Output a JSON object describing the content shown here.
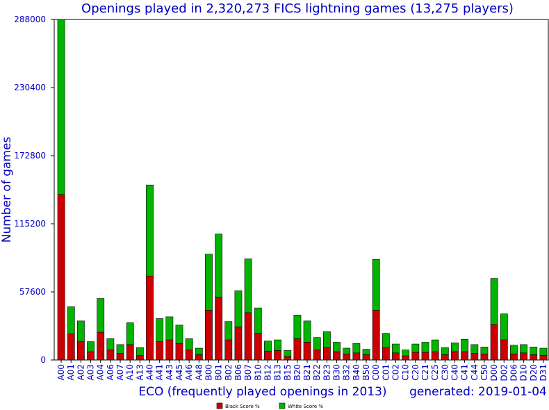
{
  "chart_data": {
    "type": "bar",
    "stacked": true,
    "title": "Openings played in 2,320,273 FICS lightning games (13,275 players)",
    "xlabel": "ECO (frequently played openings in 2013)",
    "ylabel": "Number of games",
    "footer": "generated: 2019-01-04",
    "ylim": [
      0,
      288000
    ],
    "yticks": [
      "0",
      "57600",
      "115200",
      "172800",
      "230400",
      "288000"
    ],
    "grid": false,
    "legend_position": "bottom-center",
    "categories": [
      "A00",
      "A01",
      "A02",
      "A03",
      "A04",
      "A06",
      "A07",
      "A10",
      "A13",
      "A40",
      "A41",
      "A43",
      "A45",
      "A46",
      "A48",
      "B00",
      "B01",
      "B02",
      "B06",
      "B07",
      "B10",
      "B12",
      "B13",
      "B15",
      "B20",
      "B21",
      "B22",
      "B23",
      "B30",
      "B32",
      "B40",
      "B50",
      "C00",
      "C01",
      "C02",
      "C10",
      "C20",
      "C21",
      "C25",
      "C30",
      "C40",
      "C41",
      "C44",
      "C50",
      "D00",
      "D02",
      "D06",
      "D10",
      "D20",
      "D31"
    ],
    "series": [
      {
        "name": "Black Score %",
        "color": "#cc0000",
        "values": [
          140000,
          22000,
          15500,
          7000,
          23500,
          8500,
          5500,
          13000,
          4000,
          71000,
          15500,
          17000,
          14000,
          8500,
          4500,
          42000,
          53000,
          17000,
          28000,
          40000,
          22500,
          7500,
          8000,
          3000,
          18000,
          15000,
          8500,
          10500,
          7000,
          5000,
          6000,
          4500,
          42000,
          10500,
          6000,
          3500,
          6500,
          6500,
          7000,
          4500,
          7000,
          7000,
          5500,
          5000,
          30000,
          17000,
          5000,
          6000,
          4500,
          4000
        ]
      },
      {
        "name": "White Score %",
        "color": "#00b400",
        "values": [
          148000,
          23000,
          17500,
          8500,
          28500,
          9500,
          7500,
          18500,
          6500,
          77000,
          19500,
          19500,
          15500,
          9500,
          5500,
          47500,
          53500,
          15500,
          30500,
          45500,
          21500,
          8500,
          9000,
          5000,
          20000,
          18000,
          10500,
          13500,
          8000,
          5000,
          8000,
          4500,
          43000,
          12000,
          7500,
          5000,
          7000,
          8500,
          10000,
          6000,
          7500,
          10500,
          7500,
          6000,
          39000,
          22000,
          7500,
          7000,
          6500,
          6000
        ]
      }
    ]
  }
}
